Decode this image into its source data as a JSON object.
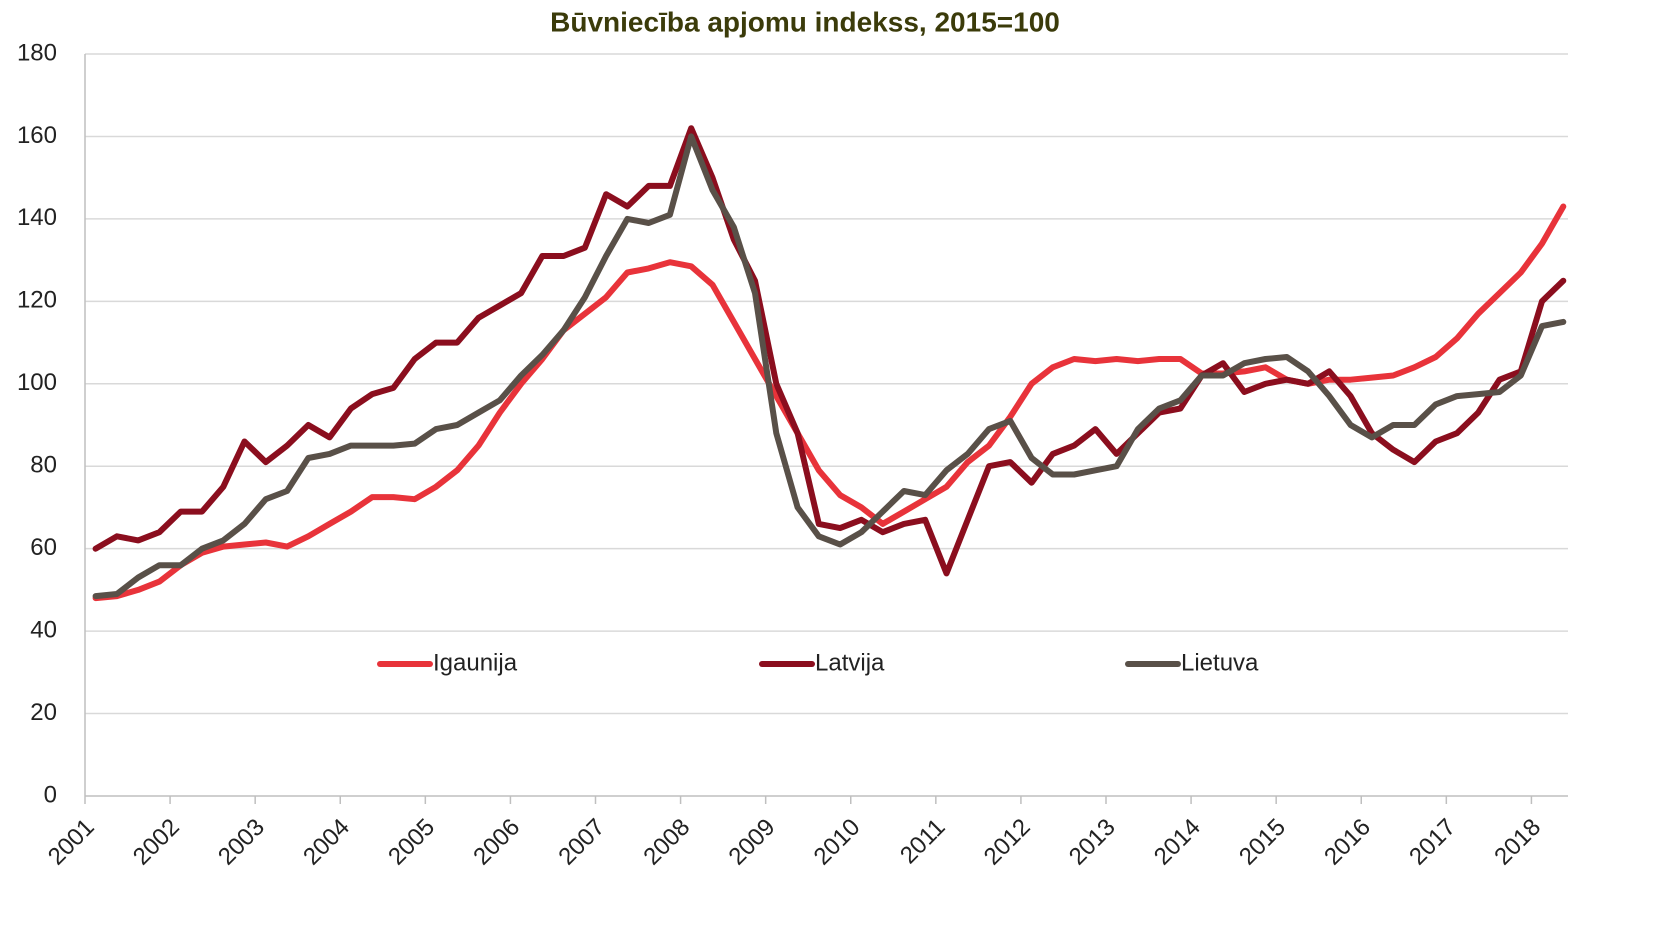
{
  "chart_data": {
    "type": "line",
    "title": "Būvniecība apjomu indekss, 2015=100",
    "x": [
      2001.125,
      2001.375,
      2001.625,
      2001.875,
      2002.125,
      2002.375,
      2002.625,
      2002.875,
      2003.125,
      2003.375,
      2003.625,
      2003.875,
      2004.125,
      2004.375,
      2004.625,
      2004.875,
      2005.125,
      2005.375,
      2005.625,
      2005.875,
      2006.125,
      2006.375,
      2006.625,
      2006.875,
      2007.125,
      2007.375,
      2007.625,
      2007.875,
      2008.125,
      2008.375,
      2008.625,
      2008.875,
      2009.125,
      2009.375,
      2009.625,
      2009.875,
      2010.125,
      2010.375,
      2010.625,
      2010.875,
      2011.125,
      2011.375,
      2011.625,
      2011.875,
      2012.125,
      2012.375,
      2012.625,
      2012.875,
      2013.125,
      2013.375,
      2013.625,
      2013.875,
      2014.125,
      2014.375,
      2014.625,
      2014.875,
      2015.125,
      2015.375,
      2015.625,
      2015.875,
      2016.125,
      2016.375,
      2016.625,
      2016.875,
      2017.125,
      2017.375,
      2017.625,
      2017.875,
      2018.125,
      2018.375
    ],
    "series": [
      {
        "name": "Igaunija",
        "color": "#e8333a",
        "values": [
          48,
          48.5,
          50,
          52,
          56,
          59,
          60.5,
          61,
          61.5,
          60.5,
          63,
          66,
          69,
          72.5,
          72.5,
          72,
          75,
          79,
          85,
          93,
          100,
          106,
          113,
          117,
          121,
          127,
          128,
          129.5,
          128.5,
          124,
          115,
          106,
          97,
          88,
          79,
          73,
          70,
          66,
          69,
          72,
          75,
          81,
          85,
          92,
          100,
          104,
          106,
          105.5,
          106,
          105.5,
          106,
          106,
          102.5,
          102.5,
          103,
          104,
          101,
          100,
          101,
          101,
          101.5,
          102,
          104,
          106.5,
          111,
          117,
          122,
          127,
          134,
          143
        ]
      },
      {
        "name": "Latvija",
        "color": "#8b0e1e",
        "values": [
          60,
          63,
          62,
          64,
          69,
          69,
          75,
          86,
          81,
          85,
          90,
          87,
          94,
          97.5,
          99,
          106,
          110,
          110,
          116,
          119,
          122,
          131,
          131,
          133,
          146,
          143,
          148,
          148,
          162,
          150,
          135,
          125,
          100,
          88,
          66,
          65,
          67,
          64,
          66,
          67,
          54,
          67,
          80,
          81,
          76,
          83,
          85,
          89,
          83,
          88,
          93,
          94,
          102,
          105,
          98,
          100,
          101,
          100,
          103,
          97,
          88,
          84,
          81,
          86,
          88,
          93,
          101,
          103,
          120,
          125
        ]
      },
      {
        "name": "Lietuva",
        "color": "#595048",
        "values": [
          48.5,
          49,
          53,
          56,
          56,
          60,
          62,
          66,
          72,
          74,
          82,
          83,
          85,
          85,
          85,
          85.5,
          89,
          90,
          93,
          96,
          102,
          107,
          113,
          121,
          131,
          140,
          139,
          141,
          160,
          147,
          138,
          122,
          88,
          70,
          63,
          61,
          64,
          69,
          74,
          73,
          79,
          83,
          89,
          91,
          82,
          78,
          78,
          79,
          80,
          89,
          94,
          96,
          102,
          102,
          105,
          106,
          106.5,
          103,
          97,
          90,
          87,
          90,
          90,
          95,
          97,
          97.5,
          98,
          102,
          114,
          115
        ]
      }
    ],
    "xlim": [
      2001,
      2018.43
    ],
    "xticks": [
      2001,
      2002,
      2003,
      2004,
      2005,
      2006,
      2007,
      2008,
      2009,
      2010,
      2011,
      2012,
      2013,
      2014,
      2015,
      2016,
      2017,
      2018
    ],
    "ylim": [
      0,
      180
    ],
    "yticks": [
      0,
      20,
      40,
      60,
      80,
      100,
      120,
      140,
      160,
      180
    ],
    "grid": true
  }
}
